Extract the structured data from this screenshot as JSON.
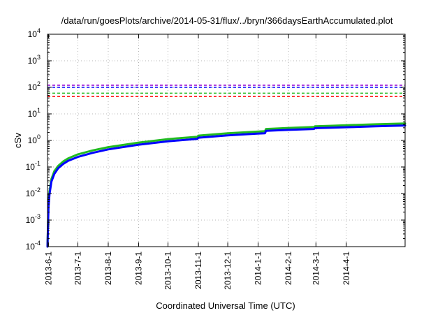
{
  "chart_data": {
    "type": "line",
    "title": "/data/run/goesPlots/archive/2014-05-31/flux/../bryn/366daysEarthAccumulated.plot",
    "xlabel": "Coordinated Universal Time (UTC)",
    "ylabel": "cSv",
    "y_scale": "log",
    "ylim": [
      0.0001,
      10000
    ],
    "xlim": [
      "2013-05-31",
      "2014-05-31"
    ],
    "grid": true,
    "legend": "none",
    "x_ticks": [
      {
        "date": "2013-06-01",
        "label": "2013-6-1"
      },
      {
        "date": "2013-07-01",
        "label": "2013-7-1"
      },
      {
        "date": "2013-08-01",
        "label": "2013-8-1"
      },
      {
        "date": "2013-09-01",
        "label": "2013-9-1"
      },
      {
        "date": "2013-10-01",
        "label": "2013-10-1"
      },
      {
        "date": "2013-11-01",
        "label": "2013-11-1"
      },
      {
        "date": "2013-12-01",
        "label": "2013-12-1"
      },
      {
        "date": "2014-01-01",
        "label": "2014-1-1"
      },
      {
        "date": "2014-02-01",
        "label": "2014-2-1"
      },
      {
        "date": "2014-03-01",
        "label": "2014-3-1"
      },
      {
        "date": "2014-04-01",
        "label": "2014-4-1"
      }
    ],
    "y_ticks": [
      {
        "value": 0.0001,
        "base": "10",
        "exp": "-4"
      },
      {
        "value": 0.001,
        "base": "10",
        "exp": "-3"
      },
      {
        "value": 0.01,
        "base": "10",
        "exp": "-2"
      },
      {
        "value": 0.1,
        "base": "10",
        "exp": "-1"
      },
      {
        "value": 1,
        "base": "10",
        "exp": "0"
      },
      {
        "value": 10,
        "base": "10",
        "exp": "1"
      },
      {
        "value": 100,
        "base": "10",
        "exp": "2"
      },
      {
        "value": 1000,
        "base": "10",
        "exp": "3"
      },
      {
        "value": 10000,
        "base": "10",
        "exp": "4"
      }
    ],
    "reference_lines": [
      {
        "value": 120,
        "color": "#9400d3"
      },
      {
        "value": 100,
        "color": "#0000ff"
      },
      {
        "value": 60,
        "color": "#22bb22"
      },
      {
        "value": 45,
        "color": "#ff0000"
      }
    ],
    "series": [
      {
        "color": "#22bb22",
        "x": [
          "2013-05-31",
          "2013-06-01",
          "2013-06-02",
          "2013-06-04",
          "2013-06-07",
          "2013-06-11",
          "2013-06-16",
          "2013-06-21",
          "2013-07-01",
          "2013-07-16",
          "2013-08-01",
          "2013-09-01",
          "2013-10-01",
          "2013-10-31",
          "2013-11-01",
          "2013-12-01",
          "2013-12-31",
          "2014-01-08",
          "2014-01-09",
          "2014-02-01",
          "2014-02-27",
          "2014-02-28",
          "2014-03-15",
          "2014-04-01",
          "2014-05-01",
          "2014-05-31"
        ],
        "y": [
          0.0001,
          0.004,
          0.012,
          0.035,
          0.07,
          0.11,
          0.16,
          0.21,
          0.3,
          0.42,
          0.56,
          0.83,
          1.12,
          1.38,
          1.52,
          1.85,
          2.15,
          2.22,
          2.7,
          2.95,
          3.2,
          3.4,
          3.55,
          3.75,
          4.05,
          4.35
        ]
      },
      {
        "color": "#0000ff",
        "x": [
          "2013-05-31",
          "2013-06-01",
          "2013-06-02",
          "2013-06-04",
          "2013-06-07",
          "2013-06-11",
          "2013-06-16",
          "2013-06-21",
          "2013-07-01",
          "2013-07-16",
          "2013-08-01",
          "2013-09-01",
          "2013-10-01",
          "2013-10-31",
          "2013-11-01",
          "2013-12-01",
          "2013-12-31",
          "2014-01-08",
          "2014-01-09",
          "2014-02-01",
          "2014-02-27",
          "2014-02-28",
          "2014-03-15",
          "2014-04-01",
          "2014-05-01",
          "2014-05-31"
        ],
        "y": [
          0.0001,
          0.003,
          0.009,
          0.028,
          0.055,
          0.09,
          0.13,
          0.17,
          0.24,
          0.34,
          0.46,
          0.69,
          0.93,
          1.15,
          1.27,
          1.55,
          1.8,
          1.87,
          2.3,
          2.5,
          2.7,
          2.9,
          3.0,
          3.15,
          3.4,
          3.65
        ]
      }
    ]
  }
}
